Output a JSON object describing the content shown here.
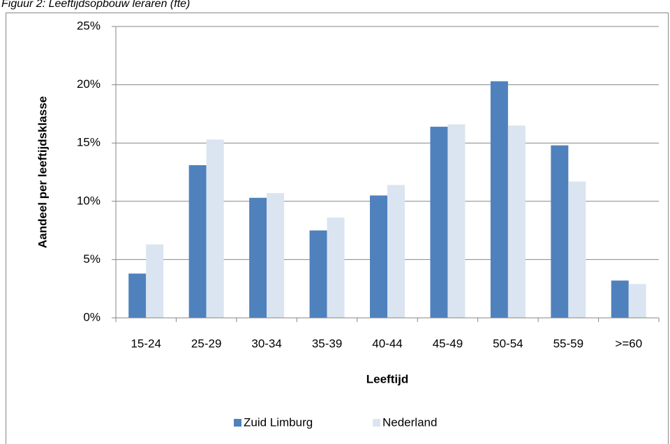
{
  "chart_data": {
    "type": "bar",
    "title": "Figuur 2: Leeftijdsopbouw leraren (fte)",
    "x_label": "Leeftijd",
    "y_label": "Aandeel per leeftijdsklasse",
    "categories": [
      "15-24",
      "25-29",
      "30-34",
      "35-39",
      "40-44",
      "45-49",
      "50-54",
      "55-59",
      ">=60"
    ],
    "series": [
      {
        "name": "Zuid Limburg",
        "color": "#4f81bd",
        "values": [
          3.8,
          13.1,
          10.3,
          7.5,
          10.5,
          16.4,
          20.3,
          14.8,
          3.2
        ]
      },
      {
        "name": "Nederland",
        "color": "#dbe5f1",
        "values": [
          6.3,
          15.3,
          10.7,
          8.6,
          11.4,
          16.6,
          16.5,
          11.7,
          2.9
        ]
      }
    ],
    "ylim": [
      0,
      25
    ],
    "yticks": [
      {
        "value": 0,
        "label": "0%"
      },
      {
        "value": 5,
        "label": "5%"
      },
      {
        "value": 10,
        "label": "10%"
      },
      {
        "value": 15,
        "label": "15%"
      },
      {
        "value": 20,
        "label": "20%"
      },
      {
        "value": 25,
        "label": "25%"
      }
    ],
    "grid": true,
    "legend": "bottom"
  }
}
